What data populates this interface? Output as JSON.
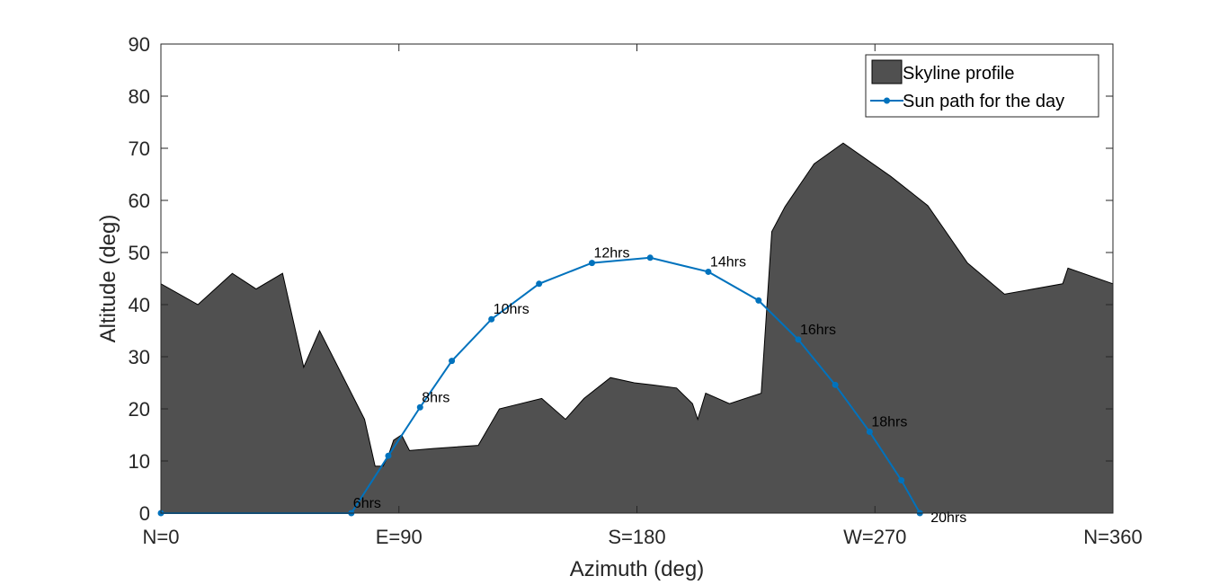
{
  "chart_data": {
    "type": "area",
    "xlabel": "Azimuth (deg)",
    "ylabel": "Altitude (deg)",
    "xlim": [
      0,
      360
    ],
    "ylim": [
      0,
      90
    ],
    "x_ticks": [
      {
        "value": 0,
        "label": "N=0"
      },
      {
        "value": 90,
        "label": "E=90"
      },
      {
        "value": 180,
        "label": "S=180"
      },
      {
        "value": 270,
        "label": "W=270"
      },
      {
        "value": 360,
        "label": "N=360"
      }
    ],
    "y_ticks": [
      0,
      10,
      20,
      30,
      40,
      50,
      60,
      70,
      80,
      90
    ],
    "legend_position": "top-right",
    "grid": false,
    "colors": {
      "skyline": "#505050",
      "sun_path": "#0072BD",
      "axes": "#262626"
    },
    "series": [
      {
        "name": "Skyline profile",
        "type": "area",
        "x": [
          0,
          14,
          27,
          36,
          46,
          54,
          60,
          68,
          77,
          81,
          84,
          86,
          88,
          91,
          94,
          103,
          120,
          128,
          144,
          153,
          160,
          170,
          179,
          186,
          195,
          201,
          203,
          206,
          215,
          227,
          231,
          236,
          247,
          258,
          276,
          290,
          305,
          319,
          341,
          343,
          360
        ],
        "y": [
          44,
          40,
          46,
          43,
          46,
          28,
          35,
          27,
          18,
          9,
          9,
          11,
          14,
          15,
          12,
          12.4,
          13,
          20,
          22,
          18,
          22,
          26,
          25,
          24.6,
          24,
          21,
          18,
          23,
          21,
          23,
          54,
          58.8,
          67,
          71,
          64.6,
          59,
          48,
          42,
          44,
          47,
          44
        ]
      },
      {
        "name": "Sun path for the day",
        "type": "line",
        "points": [
          {
            "x": 0,
            "y": 0,
            "label": ""
          },
          {
            "x": 72,
            "y": 0,
            "label": "6hrs"
          },
          {
            "x": 86,
            "y": 11,
            "label": ""
          },
          {
            "x": 98,
            "y": 20.3,
            "label": "8hrs"
          },
          {
            "x": 110,
            "y": 29.2,
            "label": ""
          },
          {
            "x": 125,
            "y": 37.2,
            "label": "10hrs"
          },
          {
            "x": 143,
            "y": 44,
            "label": ""
          },
          {
            "x": 163,
            "y": 48,
            "label": "12hrs"
          },
          {
            "x": 185,
            "y": 49,
            "label": ""
          },
          {
            "x": 207,
            "y": 46.3,
            "label": "14hrs"
          },
          {
            "x": 226,
            "y": 40.8,
            "label": ""
          },
          {
            "x": 241,
            "y": 33.3,
            "label": "16hrs"
          },
          {
            "x": 255,
            "y": 24.6,
            "label": ""
          },
          {
            "x": 268,
            "y": 15.6,
            "label": "18hrs"
          },
          {
            "x": 280,
            "y": 6.3,
            "label": ""
          },
          {
            "x": 287,
            "y": 0,
            "label": "20hrs"
          }
        ]
      }
    ]
  }
}
